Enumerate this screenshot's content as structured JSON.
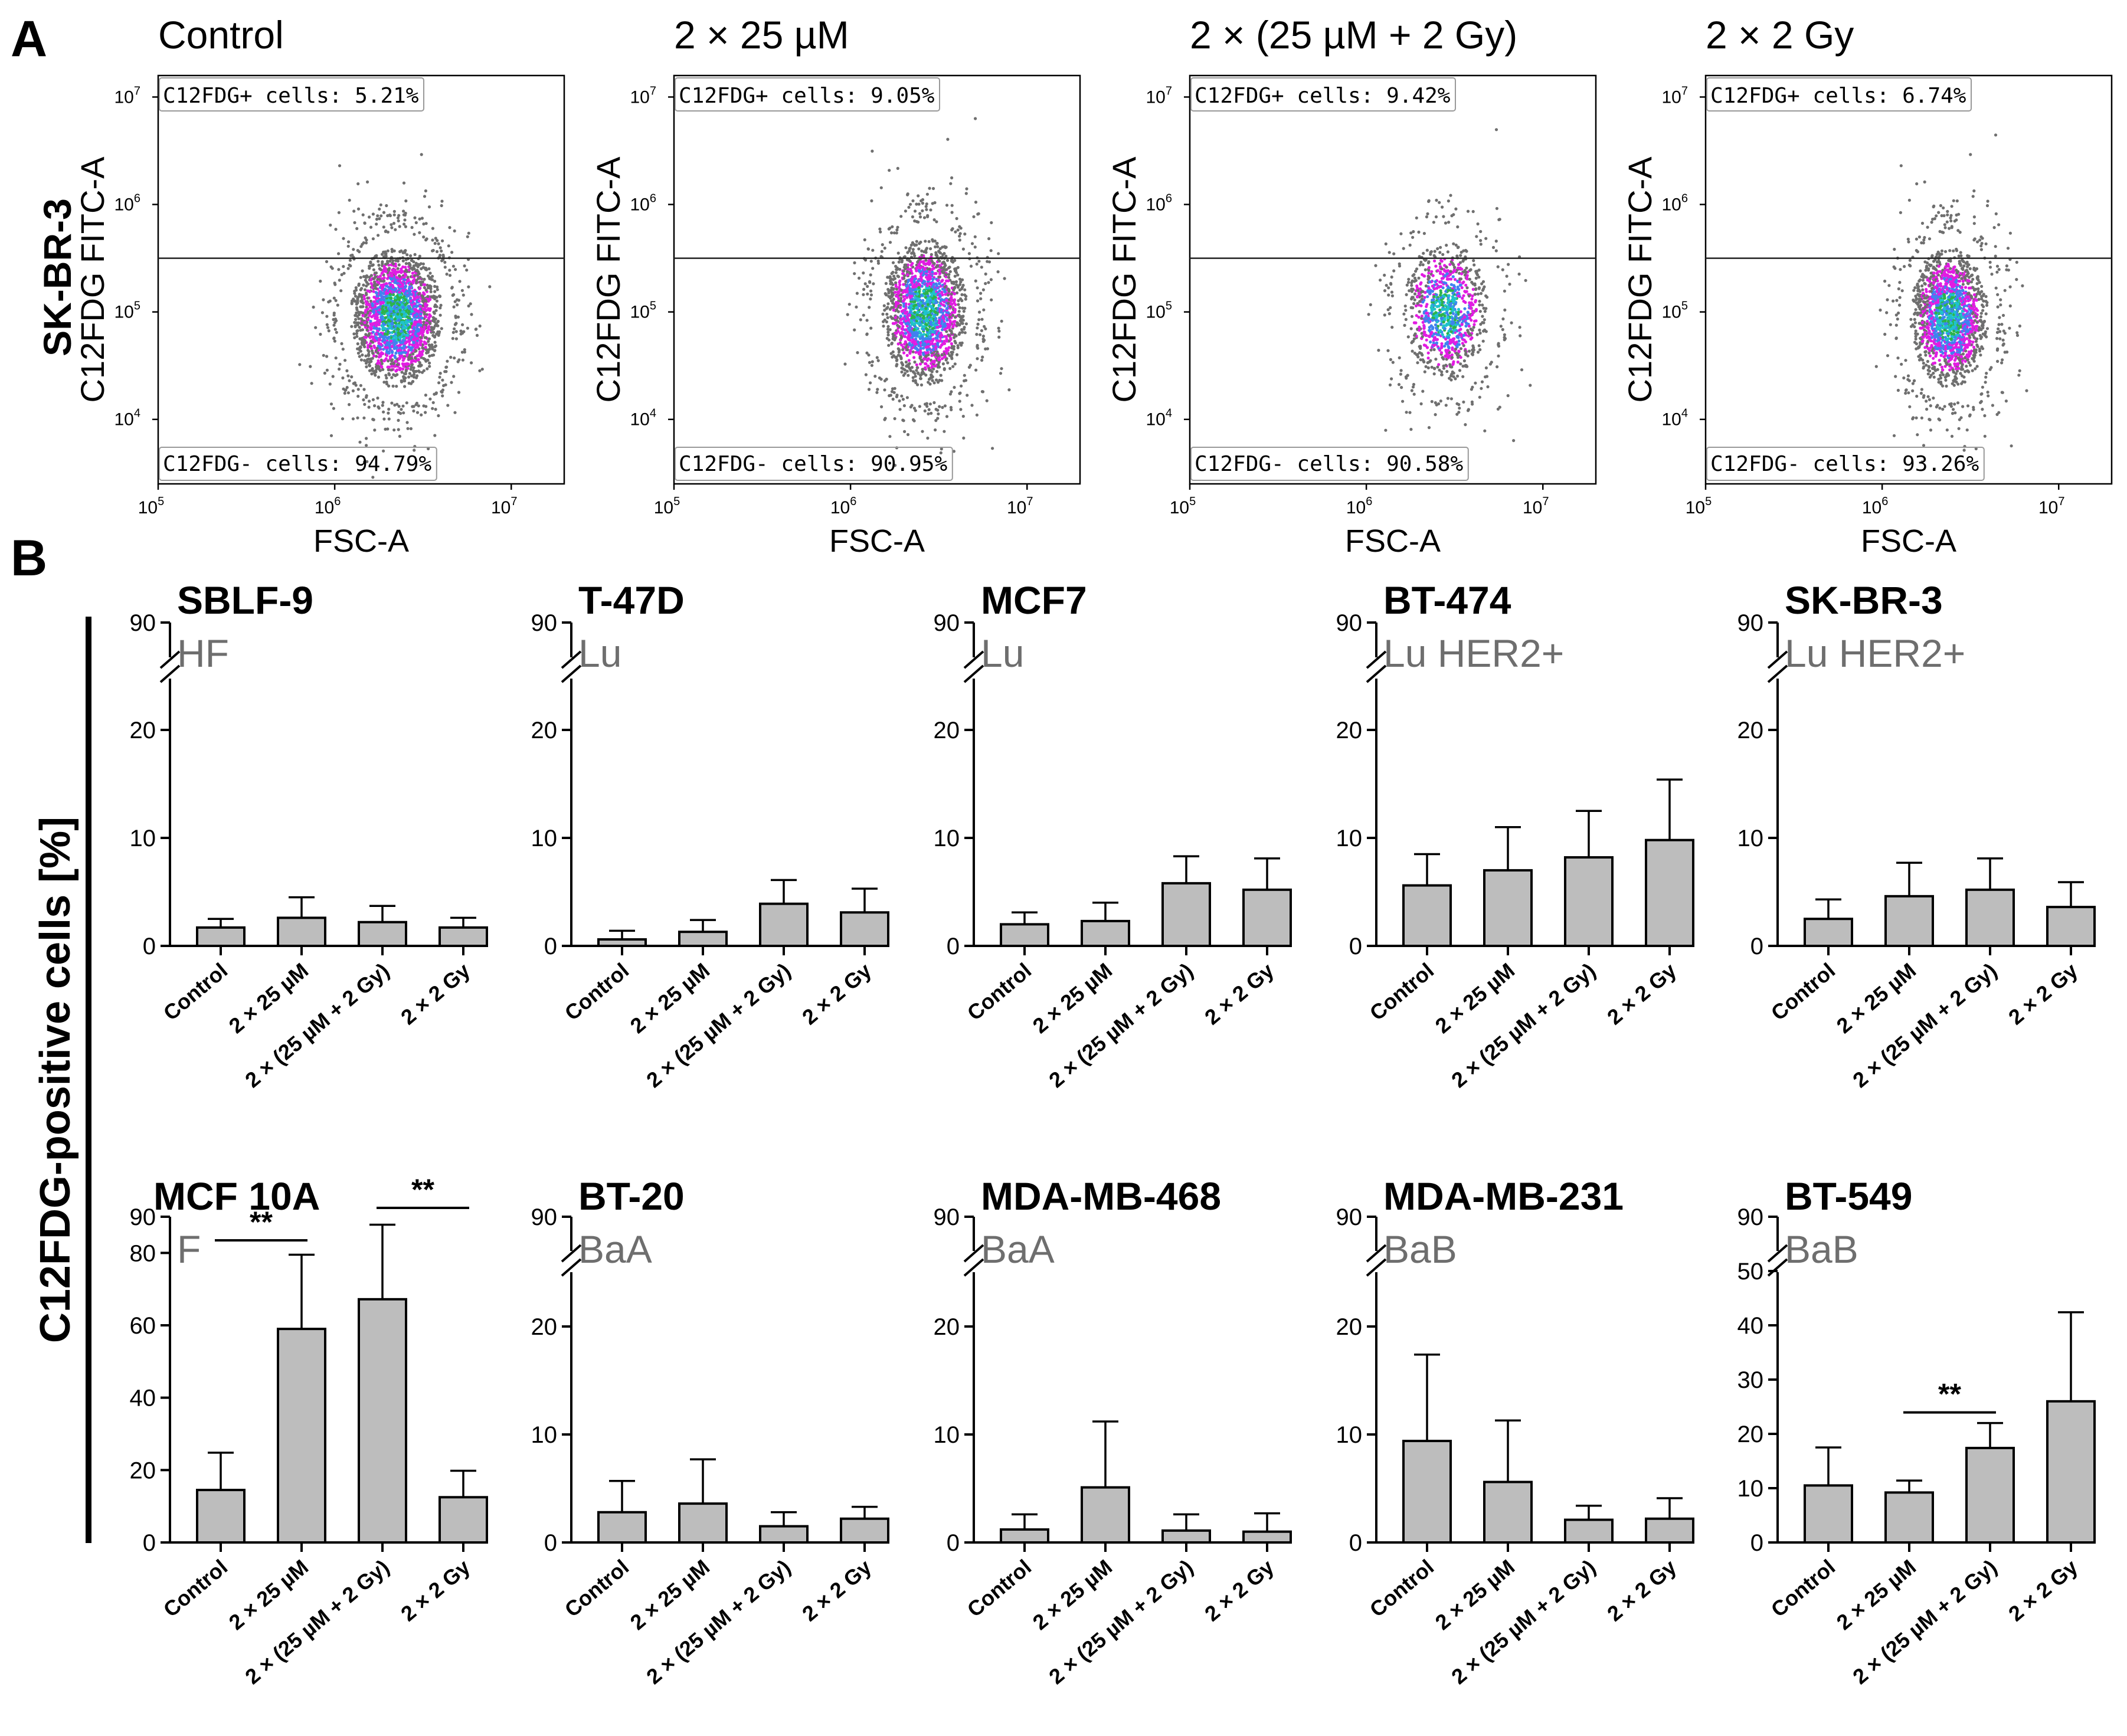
{
  "figure": {
    "panel_a_letter": "A",
    "panel_b_letter": "B",
    "panel_a_row_label": "SK-BR-3",
    "panel_b_ylabel": "C12FDG-positive cells [%]"
  },
  "colors": {
    "bar_fill": "#bdbdbd",
    "axis": "#000000",
    "subtitle": "#6e6e6e",
    "dot_grey": "#6f6f6f",
    "dot_magenta": "#e21ce2",
    "dot_blue": "#3f82f0",
    "dot_cyan": "#1fc3cc",
    "dot_green": "#2db34a"
  },
  "chart_data": [
    {
      "type": "scatter",
      "title": "Control",
      "xlabel": "FSC-A",
      "ylabel": "C12FDG FITC-A",
      "x_ticks": [
        "10^5",
        "10^6",
        "10^7"
      ],
      "y_ticks": [
        "10^4",
        "10^5",
        "10^6",
        "10^7"
      ],
      "xlim_log10": [
        5,
        7.3
      ],
      "ylim_log10": [
        3.4,
        7.2
      ],
      "gate_log10": 5.5,
      "gate_labels": {
        "positive": "C12FDG+ cells: 5.21%",
        "negative": "C12FDG- cells: 94.79%"
      },
      "cloud": {
        "center_x_log10": 6.35,
        "center_y_log10": 4.95,
        "sd_x": 0.13,
        "sd_y": 0.33,
        "n": 2400,
        "color_density": "high"
      }
    },
    {
      "type": "scatter",
      "title": "2 × 25 µM",
      "xlabel": "FSC-A",
      "ylabel": "C12FDG FITC-A",
      "x_ticks": [
        "10^5",
        "10^6",
        "10^7"
      ],
      "y_ticks": [
        "10^4",
        "10^5",
        "10^6",
        "10^7"
      ],
      "xlim_log10": [
        5,
        7.3
      ],
      "ylim_log10": [
        3.4,
        7.2
      ],
      "gate_log10": 5.5,
      "gate_labels": {
        "positive": "C12FDG+ cells: 9.05%",
        "negative": "C12FDG- cells: 90.95%"
      },
      "cloud": {
        "center_x_log10": 6.42,
        "center_y_log10": 5.0,
        "sd_x": 0.12,
        "sd_y": 0.35,
        "n": 2000,
        "color_density": "high"
      }
    },
    {
      "type": "scatter",
      "title": "2 × (25 µM + 2 Gy)",
      "xlabel": "FSC-A",
      "ylabel": "C12FDG FITC-A",
      "x_ticks": [
        "10^5",
        "10^6",
        "10^7"
      ],
      "y_ticks": [
        "10^4",
        "10^5",
        "10^6",
        "10^7"
      ],
      "xlim_log10": [
        5,
        7.3
      ],
      "ylim_log10": [
        3.4,
        7.2
      ],
      "gate_log10": 5.5,
      "gate_labels": {
        "positive": "C12FDG+ cells: 9.42%",
        "negative": "C12FDG- cells: 90.58%"
      },
      "cloud": {
        "center_x_log10": 6.45,
        "center_y_log10": 5.0,
        "sd_x": 0.12,
        "sd_y": 0.33,
        "n": 1100,
        "color_density": "medium"
      }
    },
    {
      "type": "scatter",
      "title": "2 × 2 Gy",
      "xlabel": "FSC-A",
      "ylabel": "C12FDG FITC-A",
      "x_ticks": [
        "10^5",
        "10^6",
        "10^7"
      ],
      "y_ticks": [
        "10^4",
        "10^5",
        "10^6",
        "10^7"
      ],
      "xlim_log10": [
        5,
        7.3
      ],
      "ylim_log10": [
        3.4,
        7.2
      ],
      "gate_log10": 5.5,
      "gate_labels": {
        "positive": "C12FDG+ cells: 6.74%",
        "negative": "C12FDG- cells: 93.26%"
      },
      "cloud": {
        "center_x_log10": 6.38,
        "center_y_log10": 4.95,
        "sd_x": 0.11,
        "sd_y": 0.33,
        "n": 1800,
        "color_density": "medium-high"
      }
    },
    {
      "type": "bar",
      "title": "SBLF-9",
      "subtitle": "HF",
      "categories": [
        "Control",
        "2 × 25 µM",
        "2 × (25 µM + 2 Gy)",
        "2 × 2 Gy"
      ],
      "values": [
        1.7,
        2.6,
        2.2,
        1.7
      ],
      "errors": [
        0.8,
        1.9,
        1.5,
        0.9
      ],
      "yticks": [
        0,
        10,
        20,
        90
      ],
      "axis_break": true,
      "ylim": [
        0,
        25
      ],
      "significance": []
    },
    {
      "type": "bar",
      "title": "T-47D",
      "subtitle": "Lu",
      "categories": [
        "Control",
        "2 × 25 µM",
        "2 × (25 µM + 2 Gy)",
        "2 × 2 Gy"
      ],
      "values": [
        0.6,
        1.3,
        3.9,
        3.1
      ],
      "errors": [
        0.8,
        1.1,
        2.2,
        2.2
      ],
      "yticks": [
        0,
        10,
        20,
        90
      ],
      "axis_break": true,
      "ylim": [
        0,
        25
      ],
      "significance": []
    },
    {
      "type": "bar",
      "title": "MCF7",
      "subtitle": "Lu",
      "categories": [
        "Control",
        "2 × 25 µM",
        "2 × (25 µM + 2 Gy)",
        "2 × 2 Gy"
      ],
      "values": [
        2.0,
        2.3,
        5.8,
        5.2
      ],
      "errors": [
        1.1,
        1.7,
        2.5,
        2.9
      ],
      "yticks": [
        0,
        10,
        20,
        90
      ],
      "axis_break": true,
      "ylim": [
        0,
        25
      ],
      "significance": []
    },
    {
      "type": "bar",
      "title": "BT-474",
      "subtitle": "Lu HER2+",
      "categories": [
        "Control",
        "2 × 25 µM",
        "2 × (25 µM + 2 Gy)",
        "2 × 2 Gy"
      ],
      "values": [
        5.6,
        7.0,
        8.2,
        9.8
      ],
      "errors": [
        2.9,
        4.0,
        4.3,
        5.6
      ],
      "yticks": [
        0,
        10,
        20,
        90
      ],
      "axis_break": true,
      "ylim": [
        0,
        25
      ],
      "significance": []
    },
    {
      "type": "bar",
      "title": "SK-BR-3",
      "subtitle": "Lu HER2+",
      "categories": [
        "Control",
        "2 × 25 µM",
        "2 × (25 µM + 2 Gy)",
        "2 × 2 Gy"
      ],
      "values": [
        2.5,
        4.6,
        5.2,
        3.6
      ],
      "errors": [
        1.8,
        3.1,
        2.9,
        2.3
      ],
      "yticks": [
        0,
        10,
        20,
        90
      ],
      "axis_break": true,
      "ylim": [
        0,
        25
      ],
      "significance": []
    },
    {
      "type": "bar",
      "title": "MCF 10A",
      "subtitle": "F",
      "categories": [
        "Control",
        "2 × 25 µM",
        "2 × (25 µM + 2 Gy)",
        "2 × 2 Gy"
      ],
      "values": [
        14.5,
        59.0,
        67.2,
        12.5
      ],
      "errors": [
        10.3,
        20.5,
        20.6,
        7.3
      ],
      "yticks": [
        0,
        20,
        40,
        60,
        80,
        90
      ],
      "axis_break": false,
      "ylim": [
        0,
        90
      ],
      "significance": [
        {
          "from": 0,
          "to": 1,
          "label": "**"
        },
        {
          "from": 2,
          "to": 3,
          "label": "**"
        }
      ]
    },
    {
      "type": "bar",
      "title": "BT-20",
      "subtitle": "BaA",
      "categories": [
        "Control",
        "2 × 25 µM",
        "2 × (25 µM + 2 Gy)",
        "2 × 2 Gy"
      ],
      "values": [
        2.8,
        3.6,
        1.5,
        2.2
      ],
      "errors": [
        2.9,
        4.1,
        1.3,
        1.1
      ],
      "yticks": [
        0,
        10,
        20,
        90
      ],
      "axis_break": true,
      "ylim": [
        0,
        25
      ],
      "significance": []
    },
    {
      "type": "bar",
      "title": "MDA-MB-468",
      "subtitle": "BaA",
      "categories": [
        "Control",
        "2 × 25 µM",
        "2 × (25 µM + 2 Gy)",
        "2 × 2 Gy"
      ],
      "values": [
        1.2,
        5.1,
        1.1,
        1.0
      ],
      "errors": [
        1.4,
        6.1,
        1.5,
        1.7
      ],
      "yticks": [
        0,
        10,
        20,
        90
      ],
      "axis_break": true,
      "ylim": [
        0,
        25
      ],
      "significance": []
    },
    {
      "type": "bar",
      "title": "MDA-MB-231",
      "subtitle": "BaB",
      "categories": [
        "Control",
        "2 × 25 µM",
        "2 × (25 µM + 2 Gy)",
        "2 × 2 Gy"
      ],
      "values": [
        9.4,
        5.6,
        2.1,
        2.2
      ],
      "errors": [
        8.0,
        5.7,
        1.3,
        1.9
      ],
      "yticks": [
        0,
        10,
        20,
        90
      ],
      "axis_break": true,
      "ylim": [
        0,
        25
      ],
      "significance": []
    },
    {
      "type": "bar",
      "title": "BT-549",
      "subtitle": "BaB",
      "categories": [
        "Control",
        "2 × 25 µM",
        "2 × (25 µM + 2 Gy)",
        "2 × 2 Gy"
      ],
      "values": [
        10.5,
        9.2,
        17.4,
        26.0
      ],
      "errors": [
        7.0,
        2.2,
        4.6,
        16.4
      ],
      "yticks": [
        0,
        10,
        20,
        30,
        40,
        50,
        90
      ],
      "axis_break": true,
      "ylim": [
        0,
        50
      ],
      "significance": [
        {
          "from": 1,
          "to": 2,
          "label": "**"
        }
      ]
    }
  ]
}
